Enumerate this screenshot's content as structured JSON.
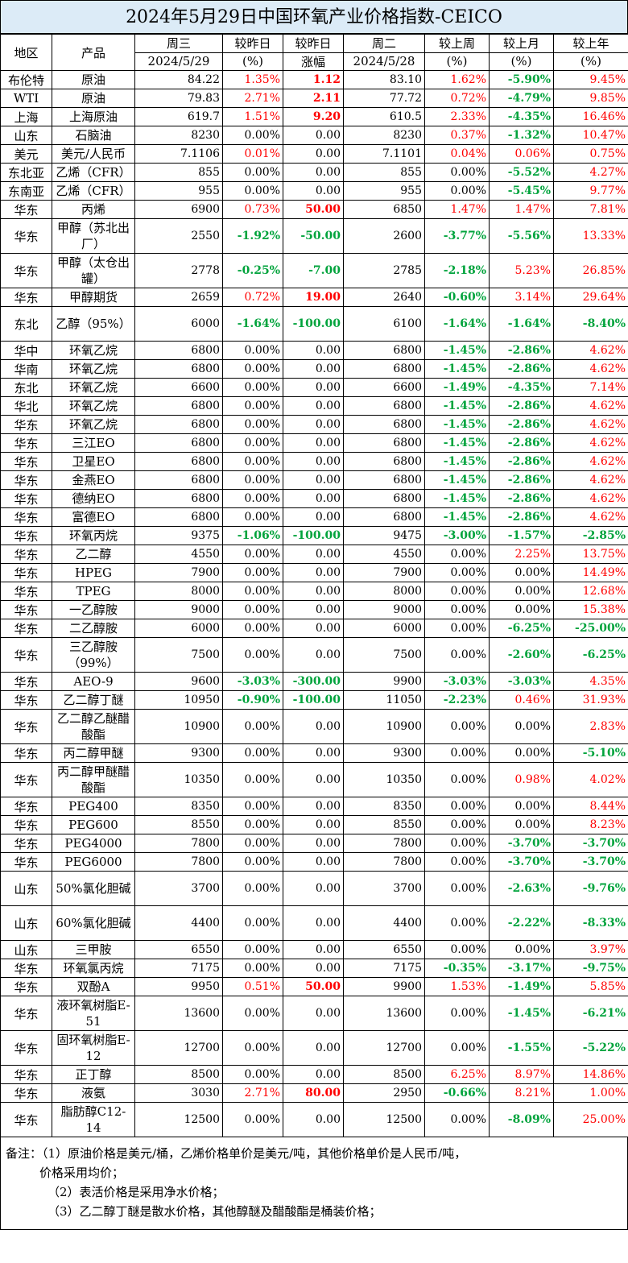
{
  "title": "2024年5月29日中国环氧产业价格指数-CEICO",
  "header": {
    "region": "地区",
    "product": "产品",
    "wed": "周三",
    "wed_date": "2024/5/29",
    "vs_yesterday": "较昨日",
    "pct": "(%)",
    "vs_yesterday2": "较昨日",
    "rise": "涨幅",
    "tue": "周二",
    "tue_date": "2024/5/28",
    "vs_week": "较上周",
    "vs_month": "较上月",
    "vs_year": "较上年"
  },
  "colors": {
    "up": "#ff0000",
    "down": "#00a33c",
    "flat": "#000000"
  },
  "rows": [
    {
      "region": "布伦特",
      "product": "原油",
      "wed": "84.22",
      "d_pct": "1.35%",
      "d_abs": "1.12",
      "tue": "83.10",
      "w": "1.62%",
      "m": "-5.90%",
      "y": "9.45%"
    },
    {
      "region": "WTI",
      "product": "原油",
      "wed": "79.83",
      "d_pct": "2.71%",
      "d_abs": "2.11",
      "tue": "77.72",
      "w": "0.72%",
      "m": "-4.79%",
      "y": "9.85%"
    },
    {
      "region": "上海",
      "product": "上海原油",
      "wed": "619.7",
      "d_pct": "1.51%",
      "d_abs": "9.20",
      "tue": "610.5",
      "w": "2.33%",
      "m": "-4.35%",
      "y": "16.46%"
    },
    {
      "region": "山东",
      "product": "石脑油",
      "wed": "8230",
      "d_pct": "0.00%",
      "d_abs": "0.00",
      "tue": "8230",
      "w": "0.37%",
      "m": "-1.32%",
      "y": "10.47%"
    },
    {
      "region": "美元",
      "product": "美元/人民币",
      "wed": "7.1106",
      "d_pct": "0.01%",
      "d_abs": "0.00",
      "tue": "7.1101",
      "w": "0.04%",
      "m": "0.06%",
      "y": "0.75%"
    },
    {
      "region": "东北亚",
      "product": "乙烯（CFR）",
      "wed": "855",
      "d_pct": "0.00%",
      "d_abs": "0.00",
      "tue": "855",
      "w": "0.00%",
      "m": "-5.52%",
      "y": "4.27%"
    },
    {
      "region": "东南亚",
      "product": "乙烯（CFR）",
      "wed": "955",
      "d_pct": "0.00%",
      "d_abs": "0.00",
      "tue": "955",
      "w": "0.00%",
      "m": "-5.45%",
      "y": "9.77%"
    },
    {
      "region": "华东",
      "product": "丙烯",
      "wed": "6900",
      "d_pct": "0.73%",
      "d_abs": "50.00",
      "tue": "6850",
      "w": "1.47%",
      "m": "1.47%",
      "y": "7.81%"
    },
    {
      "region": "华东",
      "product": "甲醇（苏北出厂）",
      "wed": "2550",
      "d_pct": "-1.92%",
      "d_abs": "-50.00",
      "tue": "2600",
      "w": "-3.77%",
      "m": "-5.56%",
      "y": "13.33%",
      "tall": true
    },
    {
      "region": "华东",
      "product": "甲醇（太仓出罐）",
      "wed": "2778",
      "d_pct": "-0.25%",
      "d_abs": "-7.00",
      "tue": "2785",
      "w": "-2.18%",
      "m": "5.23%",
      "y": "26.85%",
      "tall": true
    },
    {
      "region": "华东",
      "product": "甲醇期货",
      "wed": "2659",
      "d_pct": "0.72%",
      "d_abs": "19.00",
      "tue": "2640",
      "w": "-0.60%",
      "m": "3.14%",
      "y": "29.64%"
    },
    {
      "region": "东北",
      "product": "乙醇（95%）",
      "wed": "6000",
      "d_pct": "-1.64%",
      "d_abs": "-100.00",
      "tue": "6100",
      "w": "-1.64%",
      "m": "-1.64%",
      "y": "-8.40%",
      "tall": true
    },
    {
      "region": "华中",
      "product": "环氧乙烷",
      "wed": "6800",
      "d_pct": "0.00%",
      "d_abs": "0.00",
      "tue": "6800",
      "w": "-1.45%",
      "m": "-2.86%",
      "y": "4.62%"
    },
    {
      "region": "华南",
      "product": "环氧乙烷",
      "wed": "6800",
      "d_pct": "0.00%",
      "d_abs": "0.00",
      "tue": "6800",
      "w": "-1.45%",
      "m": "-2.86%",
      "y": "4.62%"
    },
    {
      "region": "东北",
      "product": "环氧乙烷",
      "wed": "6600",
      "d_pct": "0.00%",
      "d_abs": "0.00",
      "tue": "6600",
      "w": "-1.49%",
      "m": "-4.35%",
      "y": "7.14%"
    },
    {
      "region": "华北",
      "product": "环氧乙烷",
      "wed": "6800",
      "d_pct": "0.00%",
      "d_abs": "0.00",
      "tue": "6800",
      "w": "-1.45%",
      "m": "-2.86%",
      "y": "4.62%"
    },
    {
      "region": "华东",
      "product": "环氧乙烷",
      "wed": "6800",
      "d_pct": "0.00%",
      "d_abs": "0.00",
      "tue": "6800",
      "w": "-1.45%",
      "m": "-2.86%",
      "y": "4.62%"
    },
    {
      "region": "华东",
      "product": "三江EO",
      "wed": "6800",
      "d_pct": "0.00%",
      "d_abs": "0.00",
      "tue": "6800",
      "w": "-1.45%",
      "m": "-2.86%",
      "y": "4.62%"
    },
    {
      "region": "华东",
      "product": "卫星EO",
      "wed": "6800",
      "d_pct": "0.00%",
      "d_abs": "0.00",
      "tue": "6800",
      "w": "-1.45%",
      "m": "-2.86%",
      "y": "4.62%"
    },
    {
      "region": "华东",
      "product": "金燕EO",
      "wed": "6800",
      "d_pct": "0.00%",
      "d_abs": "0.00",
      "tue": "6800",
      "w": "-1.45%",
      "m": "-2.86%",
      "y": "4.62%"
    },
    {
      "region": "华东",
      "product": "德纳EO",
      "wed": "6800",
      "d_pct": "0.00%",
      "d_abs": "0.00",
      "tue": "6800",
      "w": "-1.45%",
      "m": "-2.86%",
      "y": "4.62%"
    },
    {
      "region": "华东",
      "product": "富德EO",
      "wed": "6800",
      "d_pct": "0.00%",
      "d_abs": "0.00",
      "tue": "6800",
      "w": "-1.45%",
      "m": "-2.86%",
      "y": "4.62%"
    },
    {
      "region": "华东",
      "product": "环氧丙烷",
      "wed": "9375",
      "d_pct": "-1.06%",
      "d_abs": "-100.00",
      "tue": "9475",
      "w": "-3.00%",
      "m": "-1.57%",
      "y": "-2.85%"
    },
    {
      "region": "华东",
      "product": "乙二醇",
      "wed": "4550",
      "d_pct": "0.00%",
      "d_abs": "0.00",
      "tue": "4550",
      "w": "0.00%",
      "m": "2.25%",
      "y": "13.75%"
    },
    {
      "region": "华东",
      "product": "HPEG",
      "wed": "7900",
      "d_pct": "0.00%",
      "d_abs": "0.00",
      "tue": "7900",
      "w": "0.00%",
      "m": "0.00%",
      "y": "14.49%"
    },
    {
      "region": "华东",
      "product": "TPEG",
      "wed": "8000",
      "d_pct": "0.00%",
      "d_abs": "0.00",
      "tue": "8000",
      "w": "0.00%",
      "m": "0.00%",
      "y": "12.68%"
    },
    {
      "region": "华东",
      "product": "一乙醇胺",
      "wed": "9000",
      "d_pct": "0.00%",
      "d_abs": "0.00",
      "tue": "9000",
      "w": "0.00%",
      "m": "0.00%",
      "y": "15.38%"
    },
    {
      "region": "华东",
      "product": "二乙醇胺",
      "wed": "6000",
      "d_pct": "0.00%",
      "d_abs": "0.00",
      "tue": "6000",
      "w": "0.00%",
      "m": "-6.25%",
      "y": "-25.00%"
    },
    {
      "region": "华东",
      "product": "三乙醇胺（99%）",
      "wed": "7500",
      "d_pct": "0.00%",
      "d_abs": "0.00",
      "tue": "7500",
      "w": "0.00%",
      "m": "-2.60%",
      "y": "-6.25%",
      "tall": true
    },
    {
      "region": "华东",
      "product": "AEO-9",
      "wed": "9600",
      "d_pct": "-3.03%",
      "d_abs": "-300.00",
      "tue": "9900",
      "w": "-3.03%",
      "m": "-3.03%",
      "y": "4.35%"
    },
    {
      "region": "华东",
      "product": "乙二醇丁醚",
      "wed": "10950",
      "d_pct": "-0.90%",
      "d_abs": "-100.00",
      "tue": "11050",
      "w": "-2.23%",
      "m": "0.46%",
      "y": "31.93%"
    },
    {
      "region": "华东",
      "product": "乙二醇乙醚醋酸酯",
      "wed": "10900",
      "d_pct": "0.00%",
      "d_abs": "0.00",
      "tue": "10900",
      "w": "0.00%",
      "m": "0.00%",
      "y": "2.83%",
      "tall": true
    },
    {
      "region": "华东",
      "product": "丙二醇甲醚",
      "wed": "9300",
      "d_pct": "0.00%",
      "d_abs": "0.00",
      "tue": "9300",
      "w": "0.00%",
      "m": "0.00%",
      "y": "-5.10%"
    },
    {
      "region": "华东",
      "product": "丙二醇甲醚醋酸酯",
      "wed": "10350",
      "d_pct": "0.00%",
      "d_abs": "0.00",
      "tue": "10350",
      "w": "0.00%",
      "m": "0.98%",
      "y": "4.02%",
      "tall": true
    },
    {
      "region": "华东",
      "product": "PEG400",
      "wed": "8350",
      "d_pct": "0.00%",
      "d_abs": "0.00",
      "tue": "8350",
      "w": "0.00%",
      "m": "0.00%",
      "y": "8.44%"
    },
    {
      "region": "华东",
      "product": "PEG600",
      "wed": "8550",
      "d_pct": "0.00%",
      "d_abs": "0.00",
      "tue": "8550",
      "w": "0.00%",
      "m": "0.00%",
      "y": "8.23%"
    },
    {
      "region": "华东",
      "product": "PEG4000",
      "wed": "7800",
      "d_pct": "0.00%",
      "d_abs": "0.00",
      "tue": "7800",
      "w": "0.00%",
      "m": "-3.70%",
      "y": "-3.70%"
    },
    {
      "region": "华东",
      "product": "PEG6000",
      "wed": "7800",
      "d_pct": "0.00%",
      "d_abs": "0.00",
      "tue": "7800",
      "w": "0.00%",
      "m": "-3.70%",
      "y": "-3.70%"
    },
    {
      "region": "山东",
      "product": "50%氯化胆碱",
      "wed": "3700",
      "d_pct": "0.00%",
      "d_abs": "0.00",
      "tue": "3700",
      "w": "0.00%",
      "m": "-2.63%",
      "y": "-9.76%",
      "tall": true
    },
    {
      "region": "山东",
      "product": "60%氯化胆碱",
      "wed": "4400",
      "d_pct": "0.00%",
      "d_abs": "0.00",
      "tue": "4400",
      "w": "0.00%",
      "m": "-2.22%",
      "y": "-8.33%",
      "tall": true
    },
    {
      "region": "山东",
      "product": "三甲胺",
      "wed": "6550",
      "d_pct": "0.00%",
      "d_abs": "0.00",
      "tue": "6550",
      "w": "0.00%",
      "m": "0.00%",
      "y": "3.97%"
    },
    {
      "region": "华东",
      "product": "环氧氯丙烷",
      "wed": "7175",
      "d_pct": "0.00%",
      "d_abs": "0.00",
      "tue": "7175",
      "w": "-0.35%",
      "m": "-3.17%",
      "y": "-9.75%"
    },
    {
      "region": "华东",
      "product": "双酚A",
      "wed": "9950",
      "d_pct": "0.51%",
      "d_abs": "50.00",
      "tue": "9900",
      "w": "1.53%",
      "m": "-1.49%",
      "y": "5.85%"
    },
    {
      "region": "华东",
      "product": "液环氧树脂E-51",
      "wed": "13600",
      "d_pct": "0.00%",
      "d_abs": "0.00",
      "tue": "13600",
      "w": "0.00%",
      "m": "-1.45%",
      "y": "-6.21%",
      "tall": true
    },
    {
      "region": "华东",
      "product": "固环氧树脂E-12",
      "wed": "12700",
      "d_pct": "0.00%",
      "d_abs": "0.00",
      "tue": "12700",
      "w": "0.00%",
      "m": "-1.55%",
      "y": "-5.22%",
      "tall": true
    },
    {
      "region": "华东",
      "product": "正丁醇",
      "wed": "8500",
      "d_pct": "0.00%",
      "d_abs": "0.00",
      "tue": "8500",
      "w": "6.25%",
      "m": "8.97%",
      "y": "14.86%"
    },
    {
      "region": "华东",
      "product": "液氨",
      "wed": "3030",
      "d_pct": "2.71%",
      "d_abs": "80.00",
      "tue": "2950",
      "w": "-0.66%",
      "m": "8.21%",
      "y": "1.00%"
    },
    {
      "region": "华东",
      "product": "脂肪醇C12-14",
      "wed": "12500",
      "d_pct": "0.00%",
      "d_abs": "0.00",
      "tue": "12500",
      "w": "0.00%",
      "m": "-8.09%",
      "y": "25.00%",
      "tall": true
    }
  ],
  "notes": {
    "line1": "备注：（1）原油价格是美元/桶，乙烯价格单价是美元/吨，其他价格单价是人民币/吨，",
    "line1b": "价格采用均价；",
    "line2": "（2）表活价格是采用净水价格；",
    "line3": "（3）乙二醇丁醚是散水价格，其他醇醚及醋酸酯是桶装价格；"
  }
}
